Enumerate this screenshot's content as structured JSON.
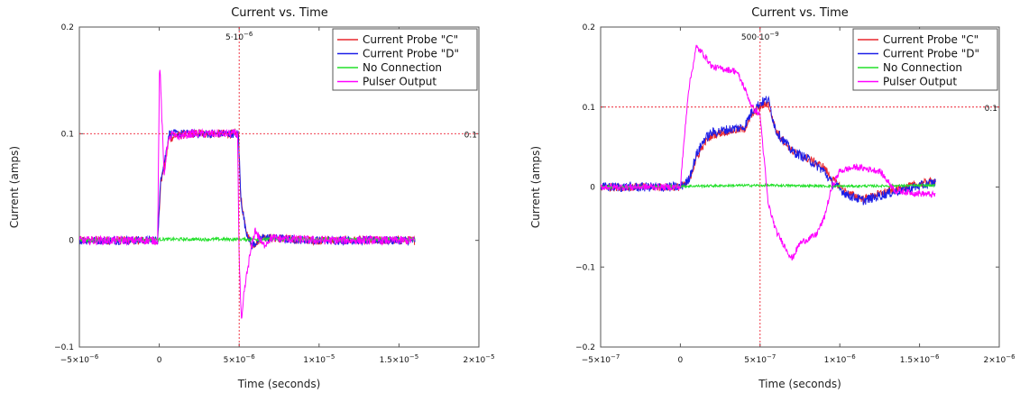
{
  "chart_data": [
    {
      "type": "line",
      "title": "Current vs. Time",
      "xlabel": "Time (seconds)",
      "ylabel": "Current (amps)",
      "xlim": [
        -5e-06,
        2e-05
      ],
      "ylim": [
        -0.1,
        0.2
      ],
      "xticks": [
        {
          "v": -5e-06,
          "base": "−5×10",
          "exp": "−6"
        },
        {
          "v": 0,
          "base": "0",
          "exp": ""
        },
        {
          "v": 5e-06,
          "base": "5×10",
          "exp": "−6"
        },
        {
          "v": 1e-05,
          "base": "1×10",
          "exp": "−5"
        },
        {
          "v": 1.5e-05,
          "base": "1.5×10",
          "exp": "−5"
        },
        {
          "v": 2e-05,
          "base": "2×10",
          "exp": "−5"
        }
      ],
      "yticks": [
        {
          "v": -0.1,
          "label": "−0.1"
        },
        {
          "v": 0,
          "label": "0"
        },
        {
          "v": 0.1,
          "label": "0.1"
        },
        {
          "v": 0.2,
          "label": "0.2"
        }
      ],
      "ref_v": {
        "x": 5e-06,
        "base": "5·10",
        "exp": "−6"
      },
      "ref_h": {
        "y": 0.1,
        "label": "0.1"
      },
      "legend_position": "top-right",
      "grid": false,
      "series": [
        {
          "name": "Current Probe \"C\"",
          "color": "#e8262d",
          "noise": 0.004,
          "x": [
            -5e-06,
            -1e-07,
            1e-07,
            4e-07,
            6e-07,
            1e-06,
            2e-06,
            3e-06,
            4e-06,
            4.95e-06,
            5.1e-06,
            5.4e-06,
            5.8e-06,
            6.5e-06,
            8e-06,
            1e-05,
            1.6e-05
          ],
          "y": [
            0,
            0,
            0.055,
            0.075,
            0.095,
            0.098,
            0.1,
            0.1,
            0.1,
            0.1,
            0.04,
            0.01,
            -0.005,
            0.003,
            0.001,
            0,
            0
          ]
        },
        {
          "name": "Current Probe \"D\"",
          "color": "#1c1ee8",
          "noise": 0.004,
          "x": [
            -5e-06,
            -1e-07,
            1e-07,
            4e-07,
            6e-07,
            1e-06,
            2e-06,
            3e-06,
            4e-06,
            4.95e-06,
            5.1e-06,
            5.4e-06,
            5.8e-06,
            6.5e-06,
            8e-06,
            1e-05,
            1.6e-05
          ],
          "y": [
            0,
            0,
            0.06,
            0.08,
            0.1,
            0.1,
            0.1,
            0.1,
            0.1,
            0.1,
            0.04,
            0.01,
            -0.005,
            0.003,
            0.001,
            0,
            0
          ]
        },
        {
          "name": "No Connection",
          "color": "#22e02a",
          "noise": 0.0015,
          "x": [
            -5e-06,
            0,
            1.6e-05
          ],
          "y": [
            0,
            0.001,
            0.001
          ]
        },
        {
          "name": "Pulser Output",
          "color": "#ff00ff",
          "noise": 0.004,
          "x": [
            -5e-06,
            -1e-07,
            2e-08,
            1e-07,
            3e-07,
            5e-07,
            8e-07,
            1e-06,
            2e-06,
            4.9e-06,
            5e-06,
            5.15e-06,
            5.3e-06,
            5.6e-06,
            6e-06,
            6.5e-06,
            7e-06,
            1e-05,
            1.6e-05
          ],
          "y": [
            0,
            0,
            0.17,
            0.14,
            0.06,
            0.09,
            0.1,
            0.097,
            0.1,
            0.1,
            -0.02,
            -0.08,
            -0.05,
            -0.02,
            0.01,
            -0.005,
            0.002,
            0,
            0
          ]
        }
      ]
    },
    {
      "type": "line",
      "title": "Current vs. Time",
      "xlabel": "Time (seconds)",
      "ylabel": "Current (amps)",
      "xlim": [
        -5e-07,
        2e-06
      ],
      "ylim": [
        -0.2,
        0.2
      ],
      "xticks": [
        {
          "v": -5e-07,
          "base": "−5×10",
          "exp": "−7"
        },
        {
          "v": 0,
          "base": "0",
          "exp": ""
        },
        {
          "v": 5e-07,
          "base": "5×10",
          "exp": "−7"
        },
        {
          "v": 1e-06,
          "base": "1×10",
          "exp": "−6"
        },
        {
          "v": 1.5e-06,
          "base": "1.5×10",
          "exp": "−6"
        },
        {
          "v": 2e-06,
          "base": "2×10",
          "exp": "−6"
        }
      ],
      "yticks": [
        {
          "v": -0.2,
          "label": "−0.2"
        },
        {
          "v": -0.1,
          "label": "−0.1"
        },
        {
          "v": 0,
          "label": "0"
        },
        {
          "v": 0.1,
          "label": "0.1"
        },
        {
          "v": 0.2,
          "label": "0.2"
        }
      ],
      "ref_v": {
        "x": 5e-07,
        "base": "500·10",
        "exp": "−9"
      },
      "ref_h": {
        "y": 0.1,
        "label": "0.1"
      },
      "legend_position": "top-right",
      "grid": false,
      "series": [
        {
          "name": "Current Probe \"C\"",
          "color": "#e8262d",
          "noise": 0.005,
          "x": [
            -5e-07,
            0,
            5e-08,
            1e-07,
            1.5e-07,
            2e-07,
            3e-07,
            4e-07,
            4.5e-07,
            5e-07,
            5.5e-07,
            6e-07,
            7e-07,
            8e-07,
            9e-07,
            9.5e-07,
            1.05e-06,
            1.15e-06,
            1.3e-06,
            1.6e-06
          ],
          "y": [
            0,
            0,
            0.005,
            0.035,
            0.055,
            0.065,
            0.07,
            0.072,
            0.09,
            0.1,
            0.105,
            0.07,
            0.045,
            0.035,
            0.025,
            0.01,
            -0.008,
            -0.015,
            -0.005,
            0.008
          ]
        },
        {
          "name": "Current Probe \"D\"",
          "color": "#1c1ee8",
          "noise": 0.006,
          "x": [
            -5e-07,
            0,
            5e-08,
            1e-07,
            1.5e-07,
            2e-07,
            3e-07,
            4e-07,
            4.5e-07,
            5e-07,
            5.5e-07,
            6e-07,
            7e-07,
            8e-07,
            9e-07,
            9.5e-07,
            1.05e-06,
            1.15e-06,
            1.3e-06,
            1.6e-06
          ],
          "y": [
            0,
            0,
            0.008,
            0.04,
            0.06,
            0.068,
            0.072,
            0.075,
            0.095,
            0.105,
            0.11,
            0.07,
            0.045,
            0.035,
            0.02,
            0.005,
            -0.01,
            -0.017,
            -0.008,
            0.006
          ]
        },
        {
          "name": "No Connection",
          "color": "#22e02a",
          "noise": 0.0015,
          "x": [
            -5e-07,
            0,
            4e-07,
            6e-07,
            1e-06,
            1.6e-06
          ],
          "y": [
            0,
            0.001,
            0.002,
            0.002,
            0.001,
            0.002
          ]
        },
        {
          "name": "Pulser Output",
          "color": "#ff00ff",
          "noise": 0.004,
          "x": [
            -5e-07,
            0,
            2e-08,
            5e-08,
            1e-07,
            1.5e-07,
            2e-07,
            3.5e-07,
            4e-07,
            4.5e-07,
            5e-07,
            5.5e-07,
            6e-07,
            7e-07,
            7.5e-07,
            8.5e-07,
            9e-07,
            9.5e-07,
            1e-06,
            1.1e-06,
            1.25e-06,
            1.35e-06,
            1.6e-06
          ],
          "y": [
            0,
            0,
            0.05,
            0.12,
            0.175,
            0.165,
            0.15,
            0.145,
            0.125,
            0.1,
            0.09,
            -0.02,
            -0.055,
            -0.09,
            -0.07,
            -0.06,
            -0.04,
            0.0,
            0.02,
            0.025,
            0.02,
            -0.005,
            -0.01
          ]
        }
      ]
    }
  ]
}
